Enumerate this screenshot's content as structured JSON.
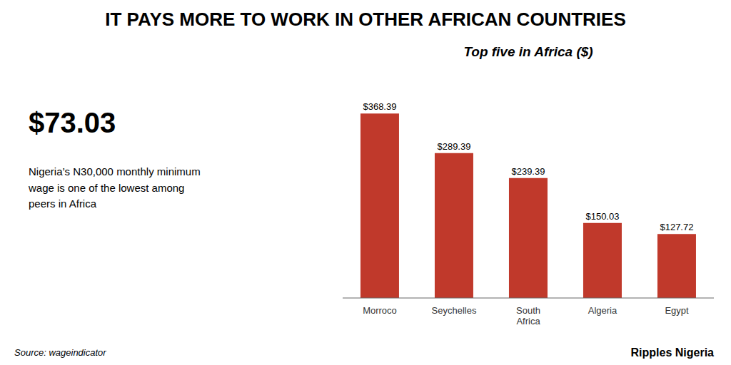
{
  "chart_data": {
    "type": "bar",
    "title": "IT PAYS MORE TO WORK IN OTHER AFRICAN COUNTRIES",
    "subtitle": "Top five in Africa ($)",
    "categories": [
      "Morroco",
      "Seychelles",
      "South\nAfrica",
      "Algeria",
      "Egypt"
    ],
    "values": [
      368.39,
      289.39,
      239.39,
      150.03,
      127.72
    ],
    "value_labels": [
      "$368.39",
      "$289.39",
      "$239.39",
      "$150.03",
      "$127.72"
    ],
    "data_labels": true,
    "color": "#c0392b",
    "ylim": [
      0,
      430
    ],
    "tick_labels": "x",
    "grid": false,
    "annotations": [
      "$73.03",
      "Nigeria’s N30,000 monthly minimum\nwage is one of the lowest among\npeers in Africa",
      "Source: wageindicator",
      "Ripples",
      "Nigeria"
    ]
  }
}
